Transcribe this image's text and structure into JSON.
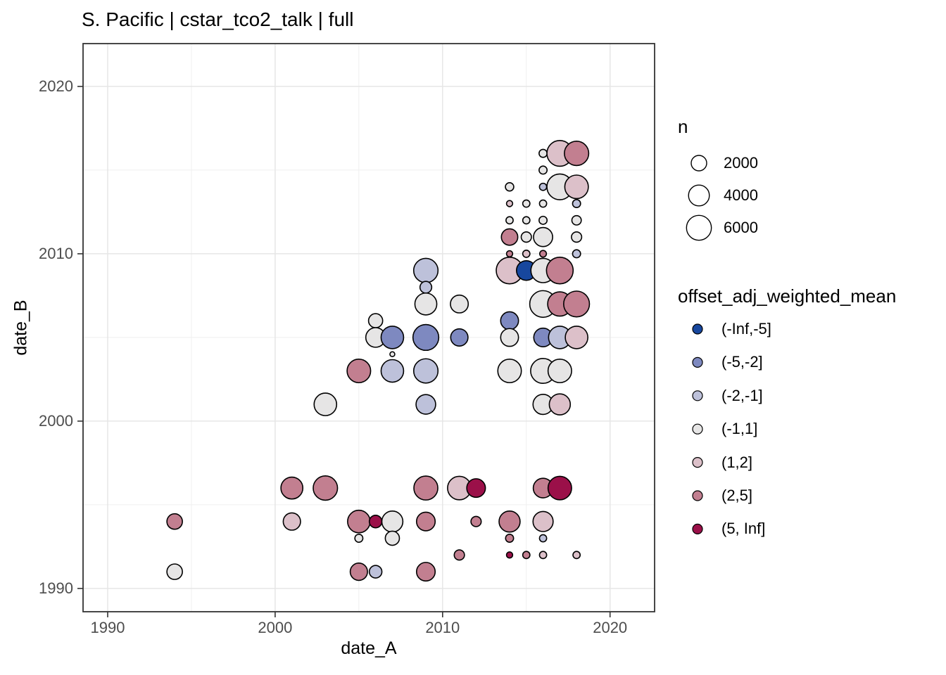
{
  "chart_data": {
    "type": "scatter",
    "title": "S. Pacific | cstar_tco2_talk | full",
    "xlabel": "date_A",
    "ylabel": "date_B",
    "xlim": [
      1988.53,
      2022.66
    ],
    "ylim": [
      1988.61,
      2022.56
    ],
    "x_major_ticks": [
      1990,
      2000,
      2010,
      2020
    ],
    "y_major_ticks": [
      1990,
      2000,
      2010,
      2020
    ],
    "x_minor_ticks": [
      1995,
      2005,
      2015
    ],
    "y_minor_ticks": [
      1995,
      2005,
      2015
    ],
    "grid": true,
    "legend_position": "right",
    "colors": {
      "panel_background": "#ffffff",
      "panel_border": "#333333",
      "grid_major": "#e6e6e6",
      "grid_minor": "#efefef",
      "tick_mark": "#333333",
      "tick_label": "#4d4d4d",
      "point_outline": "#000000"
    },
    "size_legend": {
      "title": "n",
      "values": [
        2000,
        4000,
        6000
      ]
    },
    "size_scale": {
      "r_intercept": 1.88,
      "r_slope": 0.204
    },
    "color_legend": {
      "title": "offset_adj_weighted_mean",
      "bins": [
        {
          "label": "(-Inf,-5]",
          "color": "#17479E"
        },
        {
          "label": "(-5,-2]",
          "color": "#7E89C0"
        },
        {
          "label": "(-2,-1]",
          "color": "#BDC1DA"
        },
        {
          "label": "(-1,1]",
          "color": "#E6E5E5"
        },
        {
          "label": "(1,2]",
          "color": "#DCC0C9"
        },
        {
          "label": "(2,5]",
          "color": "#C27F90"
        },
        {
          "label": "(5, Inf]",
          "color": "#9B1049"
        }
      ]
    },
    "points_columns": [
      "date_A",
      "date_B",
      "n",
      "bin_index"
    ],
    "points": [
      [
        1994,
        1991,
        2000,
        3
      ],
      [
        2005,
        1991,
        2600,
        5
      ],
      [
        2006,
        1991,
        1200,
        2
      ],
      [
        2009,
        1991,
        3100,
        5
      ],
      [
        2011,
        1992,
        700,
        5
      ],
      [
        2014,
        1992,
        150,
        6
      ],
      [
        2015,
        1992,
        250,
        5
      ],
      [
        2016,
        1992,
        250,
        4
      ],
      [
        2018,
        1992,
        250,
        4
      ],
      [
        2005,
        1993,
        350,
        3
      ],
      [
        2007,
        1993,
        1600,
        3
      ],
      [
        2014,
        1993,
        350,
        5
      ],
      [
        2016,
        1993,
        250,
        2
      ],
      [
        1994,
        1994,
        2000,
        5
      ],
      [
        2001,
        1994,
        2600,
        4
      ],
      [
        2005,
        1994,
        4800,
        5
      ],
      [
        2006,
        1994,
        1200,
        6
      ],
      [
        2007,
        1994,
        4100,
        3
      ],
      [
        2009,
        1994,
        3100,
        5
      ],
      [
        2012,
        1994,
        700,
        5
      ],
      [
        2014,
        1994,
        4100,
        5
      ],
      [
        2016,
        1994,
        3700,
        4
      ],
      [
        2001,
        1996,
        4500,
        5
      ],
      [
        2003,
        1996,
        5700,
        5
      ],
      [
        2009,
        1996,
        5500,
        5
      ],
      [
        2011,
        1996,
        5300,
        4
      ],
      [
        2012,
        1996,
        3100,
        6
      ],
      [
        2016,
        1996,
        3500,
        5
      ],
      [
        2017,
        1996,
        5300,
        6
      ],
      [
        2003,
        2001,
        4800,
        3
      ],
      [
        2009,
        2001,
        3500,
        2
      ],
      [
        2016,
        2001,
        3700,
        3
      ],
      [
        2017,
        2001,
        4100,
        4
      ],
      [
        2005,
        2003,
        5300,
        5
      ],
      [
        2007,
        2003,
        4800,
        2
      ],
      [
        2009,
        2003,
        5700,
        2
      ],
      [
        2014,
        2003,
        5300,
        3
      ],
      [
        2016,
        2003,
        6000,
        3
      ],
      [
        2017,
        2003,
        5300,
        3
      ],
      [
        2007,
        2004,
        60,
        3
      ],
      [
        2006,
        2005,
        3500,
        3
      ],
      [
        2007,
        2005,
        4800,
        1
      ],
      [
        2009,
        2005,
        6500,
        1
      ],
      [
        2011,
        2005,
        2600,
        1
      ],
      [
        2014,
        2005,
        2800,
        3
      ],
      [
        2016,
        2005,
        3100,
        1
      ],
      [
        2017,
        2005,
        4800,
        2
      ],
      [
        2018,
        2005,
        4800,
        4
      ],
      [
        2006,
        2006,
        1600,
        3
      ],
      [
        2014,
        2006,
        2800,
        1
      ],
      [
        2009,
        2007,
        4500,
        3
      ],
      [
        2011,
        2007,
        2800,
        3
      ],
      [
        2016,
        2007,
        7000,
        3
      ],
      [
        2017,
        2007,
        5700,
        5
      ],
      [
        2018,
        2007,
        6500,
        5
      ],
      [
        2009,
        2008,
        1000,
        2
      ],
      [
        2009,
        2009,
        5700,
        2
      ],
      [
        2014,
        2009,
        7000,
        4
      ],
      [
        2015,
        2009,
        3500,
        0
      ],
      [
        2016,
        2009,
        5700,
        3
      ],
      [
        2017,
        2009,
        7000,
        5
      ],
      [
        2014,
        2010,
        150,
        5
      ],
      [
        2015,
        2010,
        250,
        4
      ],
      [
        2016,
        2010,
        200,
        5
      ],
      [
        2018,
        2010,
        350,
        2
      ],
      [
        2014,
        2011,
        2300,
        5
      ],
      [
        2015,
        2011,
        700,
        3
      ],
      [
        2016,
        2011,
        3300,
        3
      ],
      [
        2018,
        2011,
        700,
        3
      ],
      [
        2014,
        2012,
        250,
        3
      ],
      [
        2015,
        2012,
        250,
        3
      ],
      [
        2016,
        2012,
        350,
        3
      ],
      [
        2018,
        2012,
        550,
        3
      ],
      [
        2014,
        2013,
        150,
        4
      ],
      [
        2015,
        2013,
        250,
        3
      ],
      [
        2016,
        2013,
        250,
        3
      ],
      [
        2018,
        2013,
        350,
        2
      ],
      [
        2014,
        2014,
        400,
        3
      ],
      [
        2016,
        2014,
        250,
        2
      ],
      [
        2017,
        2014,
        6500,
        3
      ],
      [
        2018,
        2014,
        5300,
        4
      ],
      [
        2016,
        2015,
        350,
        3
      ],
      [
        2016,
        2016,
        350,
        3
      ],
      [
        2017,
        2016,
        6500,
        4
      ],
      [
        2018,
        2016,
        5700,
        5
      ]
    ]
  }
}
